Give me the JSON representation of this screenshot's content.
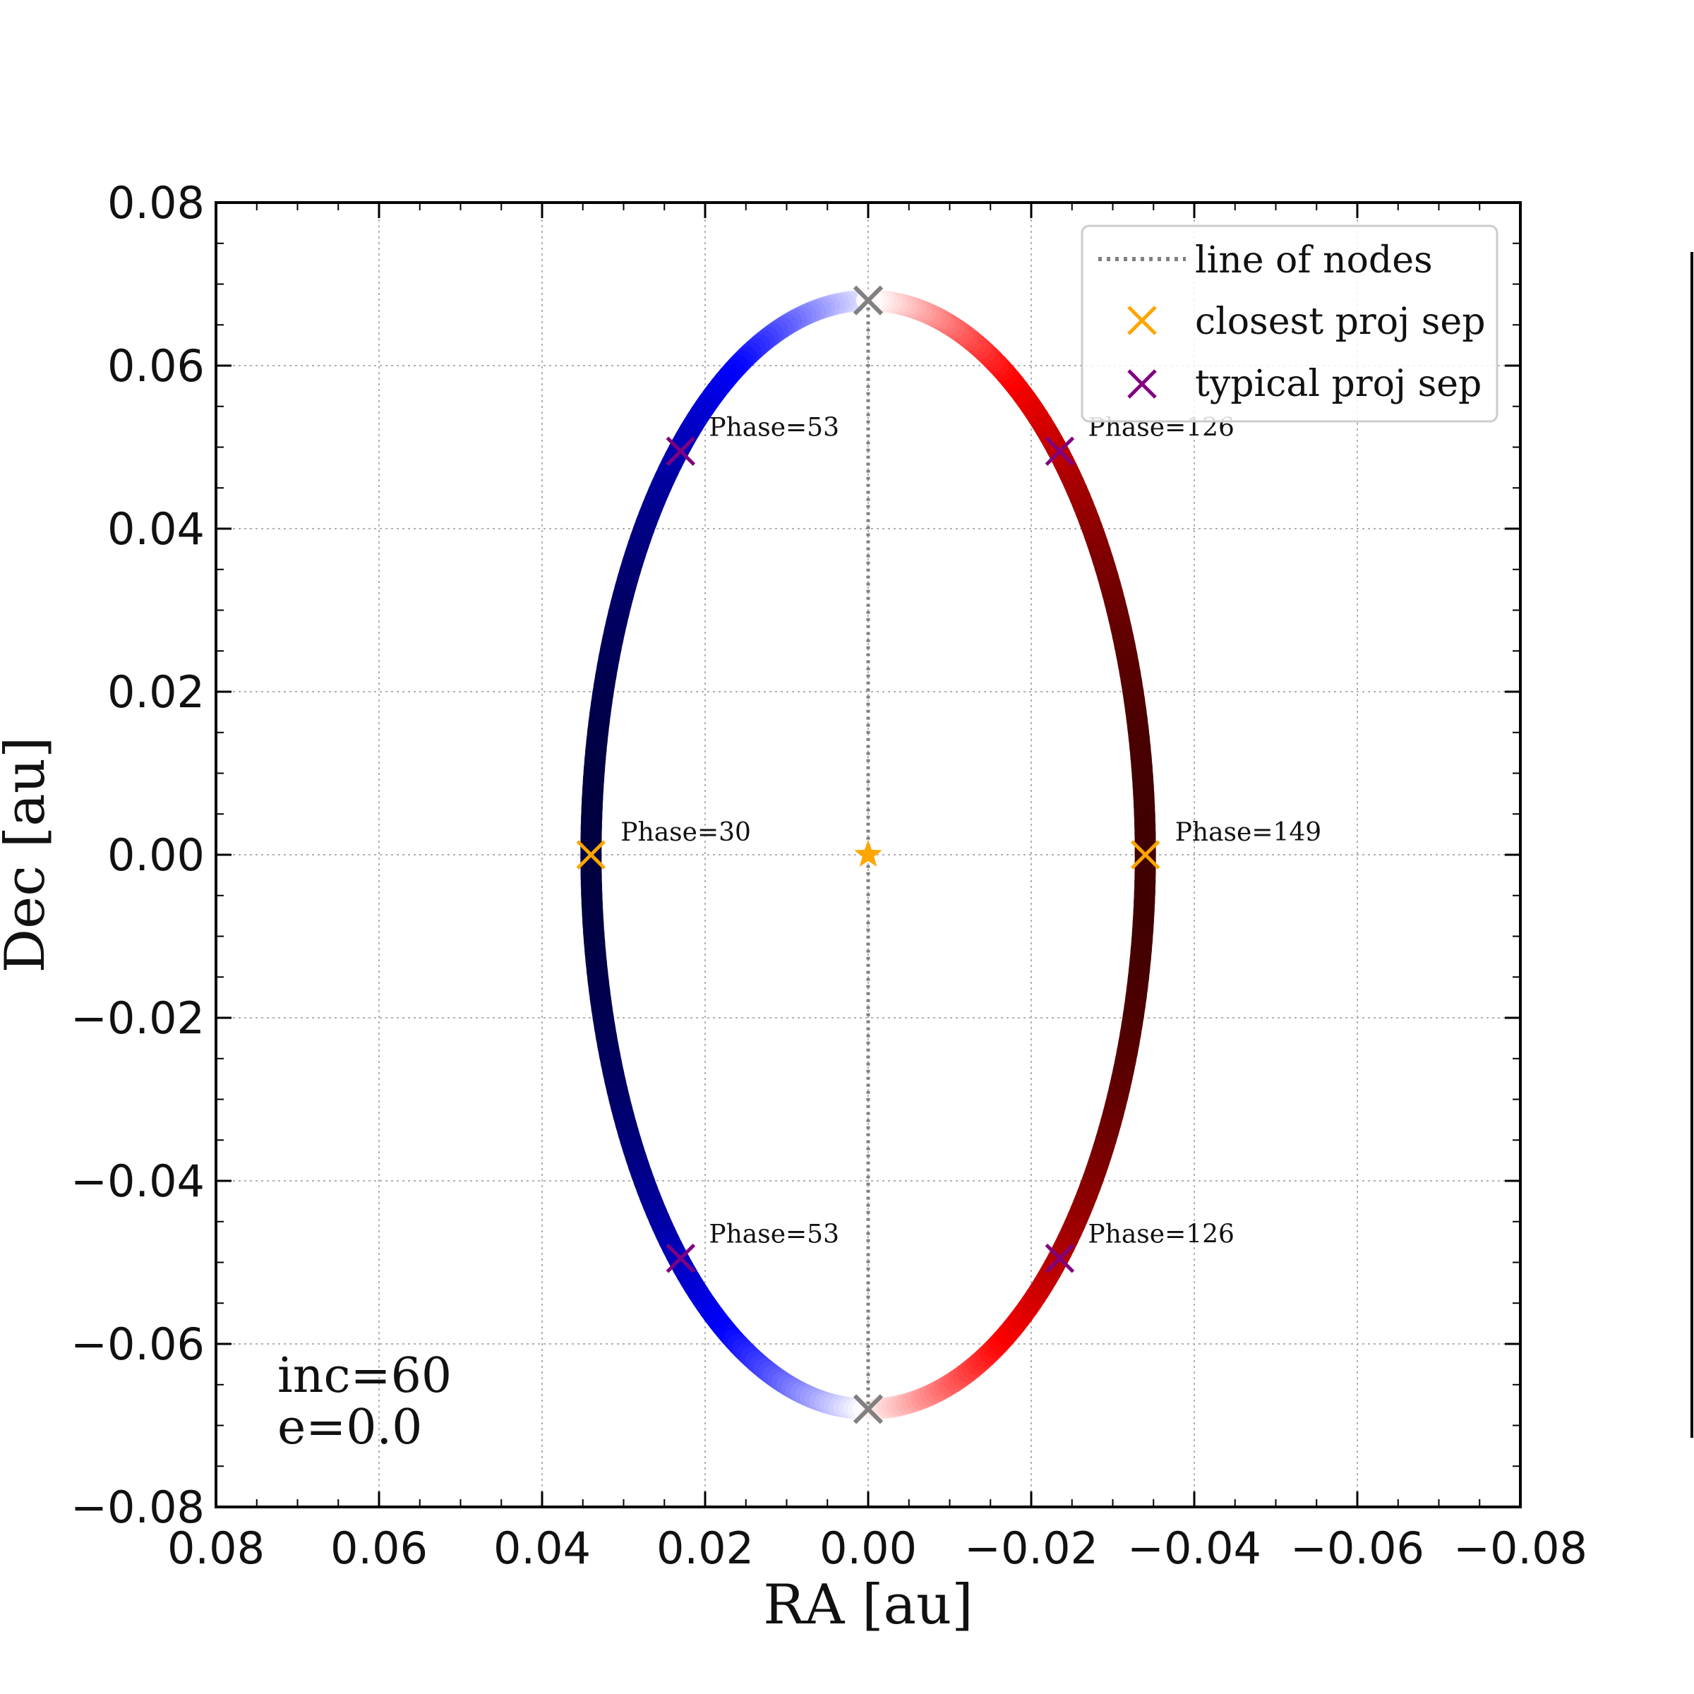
{
  "chart_data": {
    "type": "scatter",
    "xlabel": "RA [au]",
    "ylabel": "Dec [au]",
    "xlim": [
      0.08,
      -0.08
    ],
    "ylim": [
      -0.08,
      0.08
    ],
    "x_ticks": [
      0.08,
      0.06,
      0.04,
      0.02,
      0.0,
      -0.02,
      -0.04,
      -0.06,
      -0.08
    ],
    "y_ticks": [
      0.08,
      0.06,
      0.04,
      0.02,
      0.0,
      -0.02,
      -0.04,
      -0.06,
      -0.08
    ],
    "x_tick_labels": [
      "0.08",
      "0.06",
      "0.04",
      "0.02",
      "0.00",
      "−0.02",
      "−0.04",
      "−0.06",
      "−0.08"
    ],
    "y_tick_labels": [
      "0.08",
      "0.06",
      "0.04",
      "0.02",
      "0.00",
      "−0.02",
      "−0.04",
      "−0.06",
      "−0.08"
    ],
    "grid": true,
    "orbit": {
      "semi_major_au": 0.068,
      "semi_minor_au": 0.034,
      "approaching_color": "#0000ff",
      "receding_color": "#ff0000",
      "node_color": "#000000"
    },
    "line_of_nodes": {
      "x": [
        0.0,
        0.0
      ],
      "y": [
        0.068,
        -0.068
      ],
      "color": "#808080"
    },
    "node_markers": [
      {
        "x": 0.0,
        "y": 0.068
      },
      {
        "x": 0.0,
        "y": -0.068
      }
    ],
    "star": {
      "x": 0.0,
      "y": 0.0,
      "color": "#ffa500"
    },
    "closest_points": [
      {
        "x": 0.034,
        "y": 0.0,
        "label": "Phase=30"
      },
      {
        "x": -0.034,
        "y": 0.0,
        "label": "Phase=149"
      }
    ],
    "typical_points": [
      {
        "x": 0.023,
        "y": 0.0495,
        "label": "Phase=53"
      },
      {
        "x": -0.0235,
        "y": 0.0495,
        "label": "Phase=126"
      },
      {
        "x": 0.023,
        "y": -0.0495,
        "label": "Phase=53"
      },
      {
        "x": -0.0235,
        "y": -0.0495,
        "label": "Phase=126"
      }
    ],
    "legend": {
      "placement": "top-right",
      "entries": [
        {
          "label": "line of nodes",
          "style": "dotted",
          "color": "#808080"
        },
        {
          "label": "closest proj sep",
          "marker": "x",
          "color": "#ffa500"
        },
        {
          "label": "typical proj sep",
          "marker": "x",
          "color": "#800080"
        }
      ]
    },
    "annotation": {
      "line1": "inc=60",
      "line2": "e=0.0"
    }
  }
}
